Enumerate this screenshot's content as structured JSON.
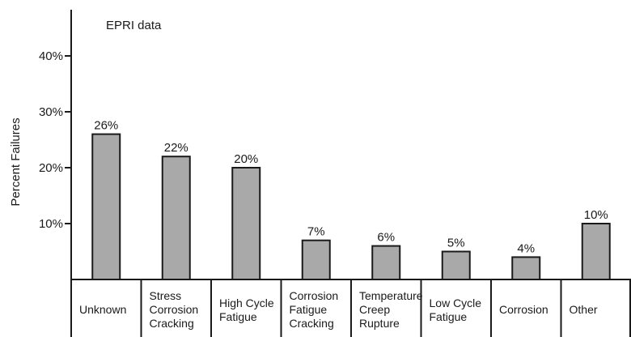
{
  "chart_data": {
    "type": "bar",
    "title": "EPRI data",
    "ylabel": "Percent Failures",
    "xlabel": "",
    "ylim": [
      0,
      50
    ],
    "yticks": [
      "10%",
      "20%",
      "30%",
      "40%"
    ],
    "categories": [
      "Unknown",
      "Stress\nCorrosion\nCracking",
      "High Cycle\nFatigue",
      "Corrosion\nFatigue\nCracking",
      "Temperature\nCreep\nRupture",
      "Low Cycle\nFatigue",
      "Corrosion",
      "Other"
    ],
    "values": [
      26,
      22,
      20,
      7,
      6,
      5,
      4,
      10
    ],
    "data_labels": [
      "26%",
      "22%",
      "20%",
      "7%",
      "6%",
      "5%",
      "4%",
      "10%"
    ],
    "bar_color": "#a9a9a9",
    "grid": false,
    "legend": "none"
  }
}
